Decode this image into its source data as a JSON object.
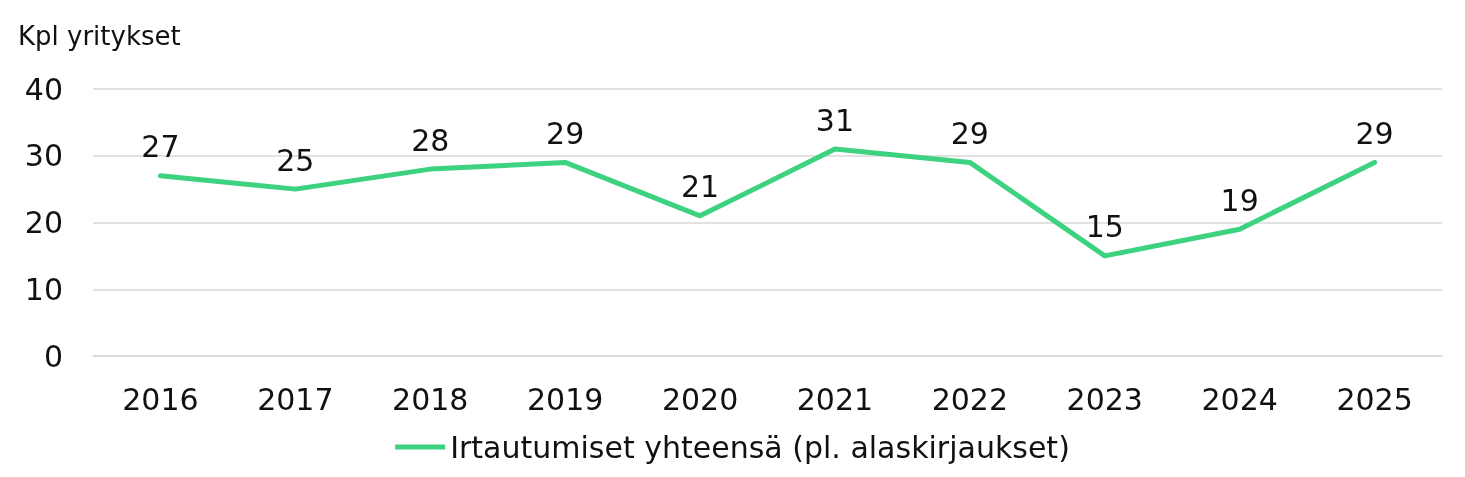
{
  "chart_data": {
    "type": "line",
    "ylabel": "Kpl yritykset",
    "categories": [
      "2016",
      "2017",
      "2018",
      "2019",
      "2020",
      "2021",
      "2022",
      "2023",
      "2024",
      "2025"
    ],
    "series": [
      {
        "name": "Irtautumiset yhteensä (pl. alaskirjaukset)",
        "color": "#3dd27f",
        "values": [
          27,
          25,
          28,
          29,
          21,
          31,
          29,
          15,
          19,
          29
        ]
      }
    ],
    "ylim": [
      0,
      40
    ],
    "yticks": [
      0,
      10,
      20,
      30,
      40
    ],
    "grid": "y",
    "legend": "bottom",
    "data_labels": true,
    "marker": "none",
    "line_style": "solid"
  }
}
